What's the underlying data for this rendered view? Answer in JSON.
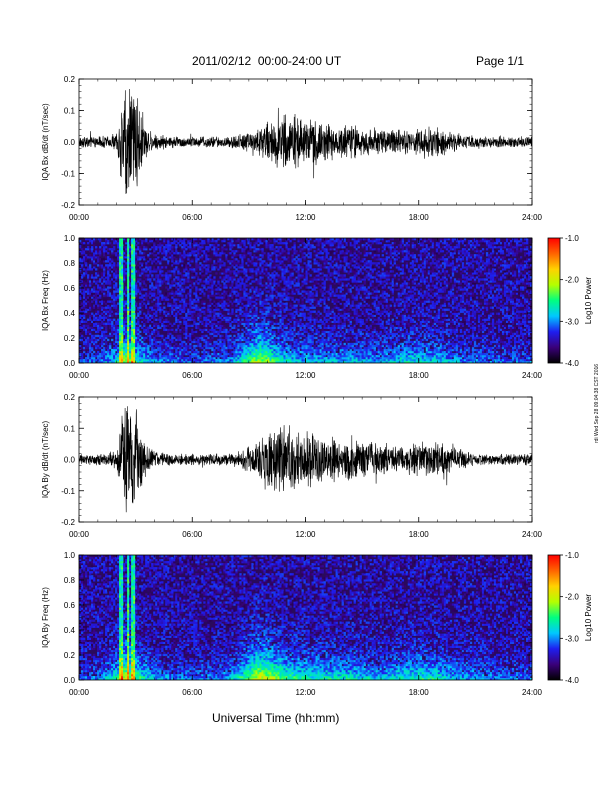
{
  "header": {
    "title": "2011/02/12  00:00-24:00 UT",
    "page": "Page 1/1"
  },
  "x_axis_title": "Universal Time (hh:mm)",
  "side_stamp": "rdi Wed Sep 28 09:04:38 CST 2016",
  "colorbar": {
    "label": "Log10 Power",
    "ticks": [
      "-1.0",
      "-2.0",
      "-3.0",
      "-4.0"
    ],
    "range": [
      -4.0,
      -1.0
    ],
    "colors": [
      "#000000",
      "#3a007a",
      "#1e1ef0",
      "#00c8ff",
      "#00ff80",
      "#b4ff00",
      "#ffd200",
      "#ff6400",
      "#ff0000"
    ]
  },
  "chart_data": [
    {
      "type": "line",
      "panel": "bx-waveform",
      "ylabel": "IQA Bx dB/dt (nT/sec)",
      "x_ticks": [
        "00:00",
        "06:00",
        "12:00",
        "18:00",
        "24:00"
      ],
      "y_ticks": [
        "0.2",
        "0.1",
        "0.0",
        "-0.1",
        "-0.2"
      ],
      "xlim": [
        0,
        24
      ],
      "ylim": [
        -0.2,
        0.2
      ],
      "x_unit": "hours UT",
      "envelope": {
        "x": [
          0,
          1,
          2,
          2.3,
          2.6,
          2.9,
          3.2,
          3.6,
          4,
          5,
          6,
          7,
          8,
          8.5,
          9,
          9.5,
          10,
          10.5,
          11,
          11.5,
          12,
          12.5,
          13,
          13.5,
          14,
          14.5,
          15,
          15.5,
          16,
          17,
          18,
          19,
          20,
          21,
          22,
          23,
          24
        ],
        "amplitude": [
          0.02,
          0.02,
          0.03,
          0.16,
          0.22,
          0.22,
          0.14,
          0.05,
          0.03,
          0.02,
          0.02,
          0.02,
          0.02,
          0.03,
          0.04,
          0.05,
          0.07,
          0.09,
          0.1,
          0.09,
          0.08,
          0.08,
          0.07,
          0.06,
          0.06,
          0.06,
          0.05,
          0.05,
          0.05,
          0.04,
          0.05,
          0.05,
          0.03,
          0.02,
          0.02,
          0.02,
          0.02
        ]
      }
    },
    {
      "type": "heatmap",
      "panel": "bx-spectrogram",
      "ylabel": "IQA Bx Freq (Hz)",
      "x_ticks": [
        "00:00",
        "06:00",
        "12:00",
        "18:00",
        "24:00"
      ],
      "y_ticks": [
        "1.0",
        "0.8",
        "0.6",
        "0.4",
        "0.2",
        "0.0"
      ],
      "xlim": [
        0,
        24
      ],
      "ylim": [
        0,
        1.0
      ],
      "colorscale": "Log10 Power",
      "zlim": [
        -4.0,
        -1.0
      ],
      "broadband_hours": [
        2.2,
        2.6,
        2.9
      ],
      "activity": {
        "x": [
          0,
          1,
          2,
          2.5,
          3,
          4,
          6,
          8,
          9,
          9.5,
          10,
          10.5,
          11,
          12,
          13,
          14,
          15,
          16,
          17,
          18,
          19,
          20,
          22,
          24
        ],
        "level": [
          0.2,
          0.2,
          0.5,
          0.9,
          0.6,
          0.3,
          0.2,
          0.3,
          0.7,
          0.9,
          0.8,
          0.6,
          0.5,
          0.4,
          0.4,
          0.4,
          0.4,
          0.35,
          0.5,
          0.5,
          0.45,
          0.3,
          0.25,
          0.2
        ]
      }
    },
    {
      "type": "line",
      "panel": "by-waveform",
      "ylabel": "IQA By dB/dt (nT/sec)",
      "x_ticks": [
        "00:00",
        "06:00",
        "12:00",
        "18:00",
        "24:00"
      ],
      "y_ticks": [
        "0.2",
        "0.1",
        "0.0",
        "-0.1",
        "-0.2"
      ],
      "xlim": [
        0,
        24
      ],
      "ylim": [
        -0.2,
        0.2
      ],
      "x_unit": "hours UT",
      "envelope": {
        "x": [
          0,
          1,
          2,
          2.3,
          2.6,
          2.9,
          3.2,
          3.6,
          4,
          5,
          6,
          7,
          8,
          8.5,
          9,
          9.5,
          10,
          10.5,
          11,
          11.5,
          12,
          12.5,
          13,
          13.5,
          14,
          14.5,
          15,
          15.5,
          16,
          17,
          18,
          19,
          20,
          21,
          22,
          23,
          24
        ],
        "amplitude": [
          0.02,
          0.02,
          0.03,
          0.18,
          0.22,
          0.22,
          0.15,
          0.05,
          0.03,
          0.02,
          0.02,
          0.02,
          0.02,
          0.03,
          0.05,
          0.07,
          0.09,
          0.11,
          0.12,
          0.11,
          0.1,
          0.09,
          0.08,
          0.08,
          0.07,
          0.08,
          0.07,
          0.06,
          0.06,
          0.05,
          0.06,
          0.06,
          0.04,
          0.02,
          0.02,
          0.02,
          0.02
        ]
      }
    },
    {
      "type": "heatmap",
      "panel": "by-spectrogram",
      "ylabel": "IQA By Freq (Hz)",
      "x_ticks": [
        "00:00",
        "06:00",
        "12:00",
        "18:00",
        "24:00"
      ],
      "y_ticks": [
        "1.0",
        "0.8",
        "0.6",
        "0.4",
        "0.2",
        "0.0"
      ],
      "xlim": [
        0,
        24
      ],
      "ylim": [
        0,
        1.0
      ],
      "colorscale": "Log10 Power",
      "zlim": [
        -4.0,
        -1.0
      ],
      "broadband_hours": [
        2.2,
        2.6,
        2.9
      ],
      "activity": {
        "x": [
          0,
          1,
          2,
          2.5,
          3,
          4,
          6,
          8,
          9,
          9.5,
          10,
          10.5,
          11,
          12,
          13,
          14,
          15,
          16,
          17,
          18,
          19,
          20,
          22,
          24
        ],
        "level": [
          0.25,
          0.25,
          0.6,
          0.95,
          0.7,
          0.35,
          0.25,
          0.35,
          0.8,
          1.0,
          0.95,
          0.8,
          0.7,
          0.6,
          0.55,
          0.55,
          0.5,
          0.45,
          0.55,
          0.6,
          0.55,
          0.4,
          0.3,
          0.25
        ]
      }
    }
  ]
}
